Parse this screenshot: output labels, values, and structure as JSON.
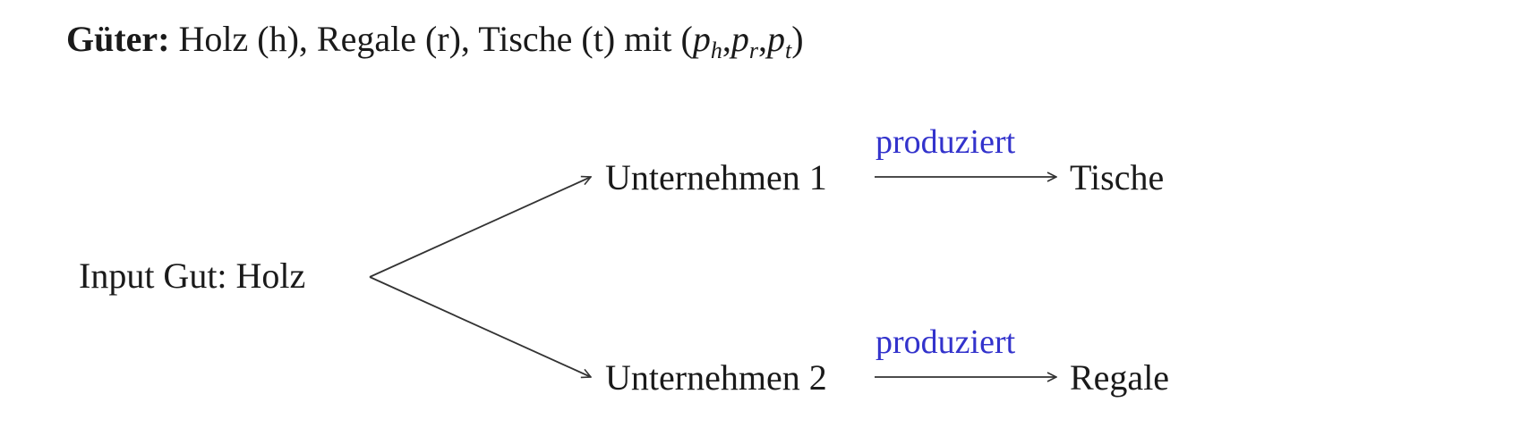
{
  "heading": {
    "bold_label": "Güter:",
    "text": "Holz (h), Regale (r), Tische (t) mit",
    "formula_open": "(",
    "p1": "p",
    "p1_sub": "h",
    "sep1": ",",
    "p2": "p",
    "p2_sub": "r",
    "sep2": ",",
    "p3": "p",
    "p3_sub": "t",
    "formula_close": ")"
  },
  "diagram": {
    "input_node": "Input Gut: Holz",
    "firm_1": "Unternehmen 1",
    "firm_2": "Unternehmen 2",
    "output_1": "Tische",
    "output_2": "Regale",
    "edge_label_1": "produziert",
    "edge_label_2": "produziert",
    "edge_label_color": "#3333cc",
    "line_color": "#333333"
  }
}
